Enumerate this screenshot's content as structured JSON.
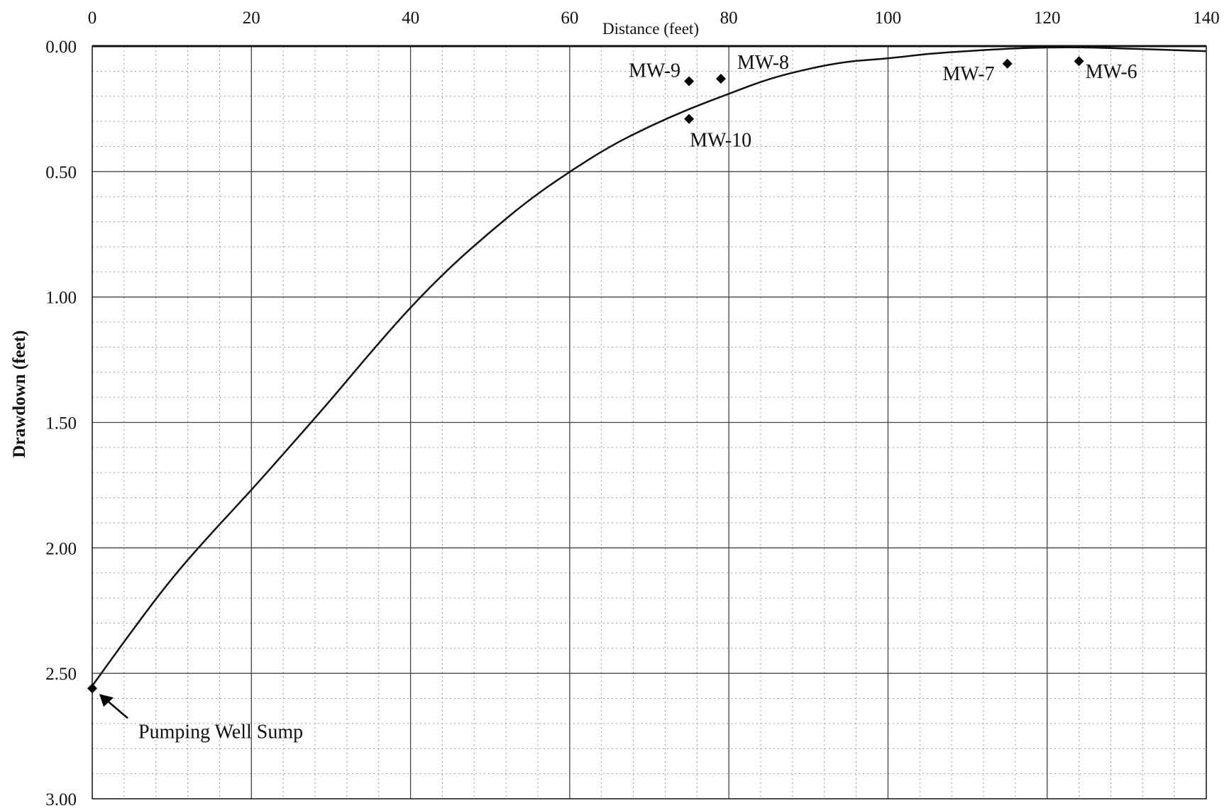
{
  "chart_data": {
    "type": "scatter",
    "xlabel": "Distance (feet)",
    "ylabel": "Drawdown (feet)",
    "xlim": [
      0,
      140
    ],
    "ylim": [
      0,
      3
    ],
    "y_inverted": true,
    "x_axis_position": "top",
    "grid": "major solid, minor dotted",
    "x_ticks": [
      "0",
      "20",
      "40",
      "60",
      "80",
      "100",
      "120",
      "140"
    ],
    "y_ticks": [
      "0.00",
      "0.50",
      "1.00",
      "1.50",
      "2.00",
      "2.50",
      "3.00"
    ],
    "points": [
      {
        "label": "Pumping Well Sump",
        "x": 0,
        "y": 2.56
      },
      {
        "label": "MW-9",
        "x": 75,
        "y": 0.14
      },
      {
        "label": "MW-8",
        "x": 79,
        "y": 0.13
      },
      {
        "label": "MW-10",
        "x": 75,
        "y": 0.29
      },
      {
        "label": "MW-7",
        "x": 115,
        "y": 0.07
      },
      {
        "label": "MW-6",
        "x": 124,
        "y": 0.06
      }
    ],
    "curve": {
      "x": [
        0,
        5,
        10,
        15,
        20,
        25,
        30,
        35,
        40,
        45,
        50,
        55,
        60,
        65,
        70,
        75,
        80,
        85,
        90,
        95,
        100,
        105,
        110,
        115,
        120,
        125,
        130,
        135,
        140
      ],
      "y": [
        2.55,
        2.33,
        2.12,
        1.94,
        1.77,
        1.59,
        1.41,
        1.22,
        1.04,
        0.88,
        0.74,
        0.61,
        0.5,
        0.4,
        0.32,
        0.25,
        0.19,
        0.13,
        0.09,
        0.06,
        0.05,
        0.03,
        0.02,
        0.01,
        0.005,
        0.005,
        0.01,
        0.015,
        0.02
      ]
    }
  }
}
